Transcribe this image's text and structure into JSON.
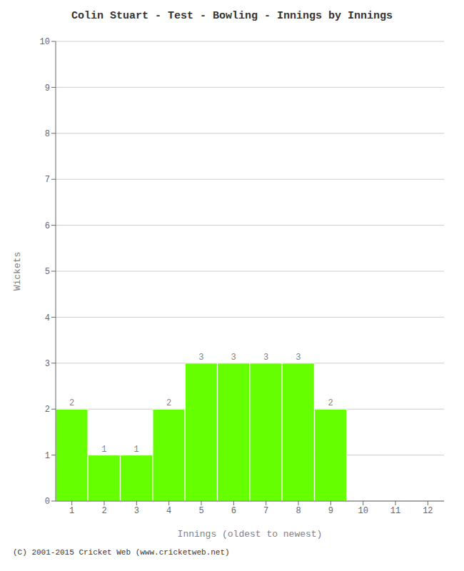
{
  "chart_data": {
    "type": "bar",
    "title": "Colin Stuart - Test - Bowling - Innings by Innings",
    "xlabel": "Innings (oldest to newest)",
    "ylabel": "Wickets",
    "categories": [
      1,
      2,
      3,
      4,
      5,
      6,
      7,
      8,
      9,
      10,
      11,
      12
    ],
    "values": [
      2,
      1,
      1,
      2,
      3,
      3,
      3,
      3,
      2,
      0,
      0,
      0
    ],
    "color": "#66ff00",
    "ylim": [
      0,
      10
    ],
    "yticks": [
      0,
      1,
      2,
      3,
      4,
      5,
      6,
      7,
      8,
      9,
      10
    ],
    "grid": true,
    "data_labels": true,
    "annotations": [
      "(C) 2001-2015 Cricket Web (www.cricketweb.net)"
    ]
  }
}
